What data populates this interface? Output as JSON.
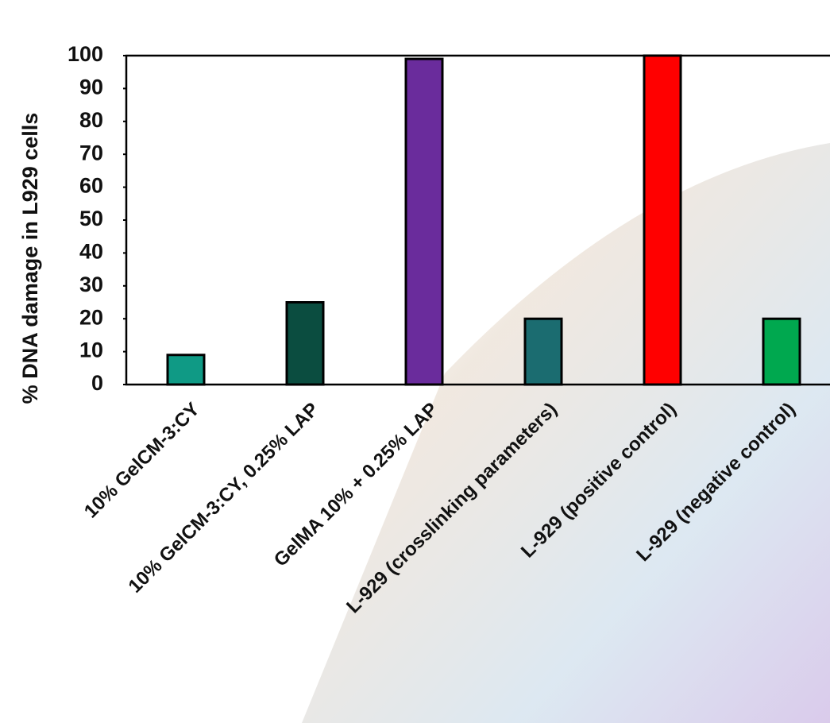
{
  "chart_data": {
    "type": "bar",
    "y_label": "% DNA damage in L929 cells",
    "categories": [
      "10% GelCM-3:CY",
      "10% GelCM-3:CY, 0.25% LAP",
      "GelMA 10% + 0.25% LAP",
      "L-929 (crosslinking parameters)",
      "L-929 (positive control)",
      "L-929 (negative control)"
    ],
    "values": [
      9,
      25,
      99,
      20,
      100,
      20
    ],
    "colors": [
      "#0f9a85",
      "#0b4d40",
      "#6a2c9c",
      "#1b6c70",
      "#ff0000",
      "#00a84f"
    ],
    "ylim": [
      0,
      100
    ],
    "yticks": [
      0,
      10,
      20,
      30,
      40,
      50,
      60,
      70,
      80,
      90,
      100
    ],
    "grid": false
  }
}
